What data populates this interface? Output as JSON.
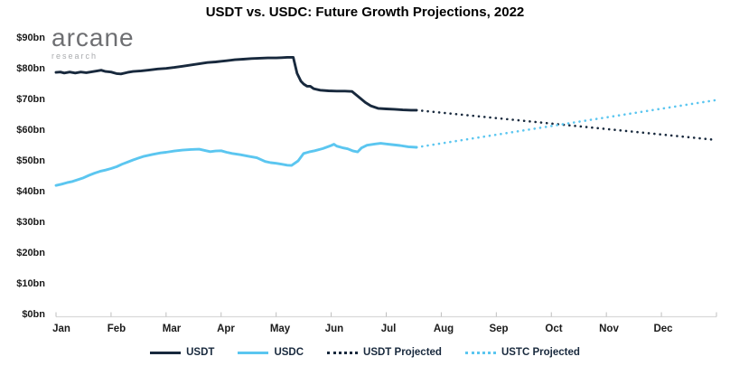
{
  "header": {
    "title": "USDT vs. USDC: Future Growth Projections, 2022"
  },
  "logo": {
    "brand": "arcane",
    "subtitle": "research"
  },
  "chart_data": {
    "type": "line",
    "title": "USDT vs. USDC: Future Growth Projections, 2022",
    "unit": "USD billions",
    "grid": false,
    "legend_position": "bottom-center",
    "x_axis": {
      "label": "",
      "x_unit": "month_index_jan0",
      "range": [
        0,
        12
      ],
      "tick_labels": [
        "Jan",
        "Feb",
        "Mar",
        "Apr",
        "May",
        "Jun",
        "Jul",
        "Aug",
        "Sep",
        "Oct",
        "Nov",
        "Dec"
      ]
    },
    "y_axis": {
      "label": "",
      "range": [
        0,
        90
      ],
      "tick_values": [
        90,
        80,
        70,
        60,
        50,
        40,
        30,
        20,
        10,
        0
      ],
      "tick_labels": [
        "$90bn",
        "$80bn",
        "$70bn",
        "$60bn",
        "$50bn",
        "$40bn",
        "$30bn",
        "$20bn",
        "$10bn",
        "$0bn"
      ]
    },
    "series": [
      {
        "name": "USDT",
        "color": "#18293D",
        "style": "solid",
        "points": [
          [
            0.0,
            78.8
          ],
          [
            0.08,
            78.9
          ],
          [
            0.15,
            78.6
          ],
          [
            0.25,
            78.9
          ],
          [
            0.35,
            78.6
          ],
          [
            0.45,
            78.9
          ],
          [
            0.55,
            78.7
          ],
          [
            0.65,
            79.0
          ],
          [
            0.75,
            79.3
          ],
          [
            0.82,
            79.5
          ],
          [
            0.9,
            79.1
          ],
          [
            1.0,
            78.9
          ],
          [
            1.1,
            78.4
          ],
          [
            1.18,
            78.3
          ],
          [
            1.3,
            78.8
          ],
          [
            1.4,
            79.1
          ],
          [
            1.55,
            79.3
          ],
          [
            1.7,
            79.6
          ],
          [
            1.85,
            79.9
          ],
          [
            2.0,
            80.1
          ],
          [
            2.15,
            80.4
          ],
          [
            2.3,
            80.8
          ],
          [
            2.45,
            81.2
          ],
          [
            2.6,
            81.6
          ],
          [
            2.75,
            82.0
          ],
          [
            2.9,
            82.2
          ],
          [
            3.0,
            82.4
          ],
          [
            3.1,
            82.6
          ],
          [
            3.25,
            82.9
          ],
          [
            3.4,
            83.1
          ],
          [
            3.55,
            83.3
          ],
          [
            3.7,
            83.4
          ],
          [
            3.85,
            83.5
          ],
          [
            4.0,
            83.5
          ],
          [
            4.1,
            83.6
          ],
          [
            4.2,
            83.7
          ],
          [
            4.31,
            83.7
          ],
          [
            4.38,
            78.5
          ],
          [
            4.45,
            75.9
          ],
          [
            4.5,
            75.0
          ],
          [
            4.56,
            74.3
          ],
          [
            4.62,
            74.3
          ],
          [
            4.68,
            73.5
          ],
          [
            4.8,
            73.0
          ],
          [
            4.95,
            72.8
          ],
          [
            5.1,
            72.7
          ],
          [
            5.25,
            72.7
          ],
          [
            5.38,
            72.6
          ],
          [
            5.5,
            70.8
          ],
          [
            5.62,
            69.0
          ],
          [
            5.72,
            67.9
          ],
          [
            5.85,
            67.1
          ],
          [
            6.0,
            66.9
          ],
          [
            6.15,
            66.8
          ],
          [
            6.3,
            66.6
          ],
          [
            6.45,
            66.5
          ],
          [
            6.55,
            66.5
          ]
        ]
      },
      {
        "name": "USDC",
        "color": "#5BC6F0",
        "style": "solid",
        "points": [
          [
            0.0,
            42.0
          ],
          [
            0.1,
            42.4
          ],
          [
            0.2,
            42.9
          ],
          [
            0.3,
            43.3
          ],
          [
            0.4,
            43.9
          ],
          [
            0.5,
            44.5
          ],
          [
            0.6,
            45.3
          ],
          [
            0.7,
            46.0
          ],
          [
            0.8,
            46.6
          ],
          [
            0.9,
            47.0
          ],
          [
            1.0,
            47.5
          ],
          [
            1.1,
            48.1
          ],
          [
            1.2,
            48.9
          ],
          [
            1.3,
            49.6
          ],
          [
            1.4,
            50.3
          ],
          [
            1.5,
            50.9
          ],
          [
            1.6,
            51.5
          ],
          [
            1.75,
            52.1
          ],
          [
            1.9,
            52.6
          ],
          [
            2.0,
            52.8
          ],
          [
            2.15,
            53.2
          ],
          [
            2.3,
            53.5
          ],
          [
            2.45,
            53.7
          ],
          [
            2.6,
            53.8
          ],
          [
            2.7,
            53.4
          ],
          [
            2.8,
            53.0
          ],
          [
            2.9,
            53.2
          ],
          [
            3.0,
            53.3
          ],
          [
            3.1,
            52.8
          ],
          [
            3.2,
            52.4
          ],
          [
            3.35,
            52.0
          ],
          [
            3.5,
            51.5
          ],
          [
            3.65,
            51.0
          ],
          [
            3.8,
            49.8
          ],
          [
            3.9,
            49.4
          ],
          [
            4.0,
            49.2
          ],
          [
            4.1,
            48.9
          ],
          [
            4.2,
            48.6
          ],
          [
            4.28,
            48.5
          ],
          [
            4.4,
            50.0
          ],
          [
            4.5,
            52.4
          ],
          [
            4.6,
            52.9
          ],
          [
            4.7,
            53.3
          ],
          [
            4.85,
            54.0
          ],
          [
            5.0,
            55.0
          ],
          [
            5.05,
            55.4
          ],
          [
            5.1,
            54.8
          ],
          [
            5.2,
            54.3
          ],
          [
            5.3,
            53.9
          ],
          [
            5.4,
            53.2
          ],
          [
            5.48,
            52.9
          ],
          [
            5.55,
            54.2
          ],
          [
            5.65,
            55.1
          ],
          [
            5.8,
            55.5
          ],
          [
            5.9,
            55.7
          ],
          [
            6.0,
            55.5
          ],
          [
            6.1,
            55.3
          ],
          [
            6.25,
            55.0
          ],
          [
            6.4,
            54.6
          ],
          [
            6.55,
            54.4
          ]
        ]
      },
      {
        "name": "USDT Projected",
        "color": "#18293D",
        "style": "dotted",
        "points": [
          [
            6.55,
            66.5
          ],
          [
            12.0,
            56.8
          ]
        ]
      },
      {
        "name": "USTC Projected",
        "color": "#5BC6F0",
        "style": "dotted",
        "points": [
          [
            6.55,
            54.4
          ],
          [
            12.0,
            69.8
          ]
        ]
      }
    ],
    "legend": [
      {
        "label": "USDT",
        "color": "#18293D",
        "style": "solid"
      },
      {
        "label": "USDC",
        "color": "#5BC6F0",
        "style": "solid"
      },
      {
        "label": "USDT Projected",
        "color": "#18293D",
        "style": "dotted"
      },
      {
        "label": "USTC Projected",
        "color": "#5BC6F0",
        "style": "dotted"
      }
    ],
    "axis_colors": {
      "axis_line": "#D9D9D9",
      "tick_mark": "#BFBFBF",
      "tick_text": "#1a1a1a"
    }
  }
}
